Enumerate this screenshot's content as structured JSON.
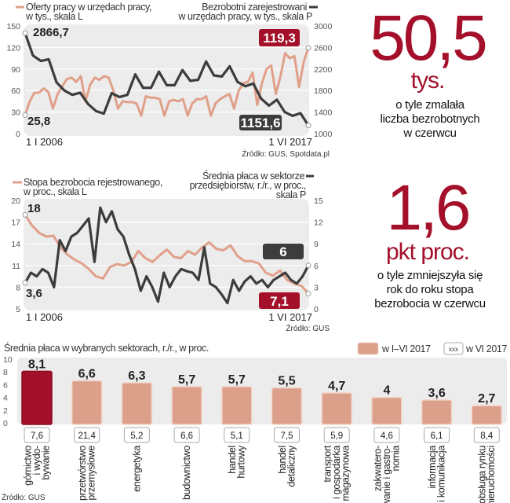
{
  "colors": {
    "salmon": "#e0a08a",
    "dark": "#3c3c3c",
    "red": "#a4102a",
    "grid_bg": "#ececec"
  },
  "headline1": {
    "value": "50,5",
    "unit": "tys.",
    "lines": [
      "o tyle zmalała",
      "liczba bezrobotnych",
      "w czerwcu"
    ]
  },
  "headline2": {
    "value": "1,6",
    "unit": "pkt proc.",
    "lines": [
      "o tyle zmniejszyła się",
      "rok do roku stopa",
      "bezrobocia w czerwcu"
    ]
  },
  "chart_data": [
    {
      "type": "line",
      "legend_left": [
        "Oferty pracy w urzędach pracy,",
        "w tys., skala L"
      ],
      "legend_right": [
        "Bezrobotni zarejestrowani",
        "w urzędach pracy, w tys., skala P"
      ],
      "x_start": "1 I 2006",
      "x_end": "1 VI 2017",
      "ylim_left": [
        0,
        150
      ],
      "yticks_left": [
        "0",
        "30",
        "60",
        "90",
        "120",
        "150"
      ],
      "ylim_right": [
        1000,
        3000
      ],
      "yticks_right": [
        "1000",
        "1400",
        "1800",
        "2200",
        "2600",
        "3000"
      ],
      "annotations": {
        "left_start": "25,8",
        "left_end": "119,3",
        "right_start": "2866,7",
        "right_end": "1151,6"
      },
      "source": "Źródło: GUS, Spotdata.pl",
      "series": [
        {
          "name": "Oferty pracy",
          "axis": "left",
          "values": [
            25.8,
            45,
            57,
            57,
            63,
            58,
            35,
            55,
            66,
            76,
            78,
            72,
            80,
            45,
            68,
            78,
            75,
            80,
            78,
            60,
            35,
            45,
            44,
            44,
            42,
            25,
            52,
            50,
            50,
            48,
            25,
            45,
            47,
            45,
            48,
            25,
            42,
            48,
            48,
            52,
            25,
            42,
            48,
            52,
            55,
            35,
            60,
            70,
            72,
            85,
            40,
            70,
            90,
            95,
            55,
            80,
            112,
            105,
            108,
            65,
            100,
            119.3
          ]
        },
        {
          "name": "Bezrobotni",
          "axis": "right",
          "values": [
            2866.7,
            2450,
            2350,
            2380,
            1950,
            1800,
            1720,
            1760,
            1550,
            1420,
            1370,
            1750,
            1680,
            1720,
            2100,
            1850,
            1850,
            2150,
            1900,
            1900,
            2180,
            1980,
            2000,
            2340,
            2080,
            2060,
            2250,
            1960,
            1880,
            1930,
            1650,
            1520,
            1630,
            1400,
            1330,
            1380,
            1151.6
          ]
        }
      ]
    },
    {
      "type": "line",
      "legend_left": [
        "Stopa bezrobocia rejestrowanego,",
        "w proc., skala L"
      ],
      "legend_right": [
        "Średnia płaca w sektorze",
        "przedsiębiorstw, r./r., w proc.,",
        "skala P"
      ],
      "x_start": "1 I 2006",
      "x_end": "1 VI 2017",
      "ylim_left": [
        5,
        20
      ],
      "yticks_left": [
        "5",
        "8",
        "11",
        "14",
        "17",
        "20"
      ],
      "ylim_right": [
        0,
        15
      ],
      "yticks_right": [
        "0",
        "3",
        "6",
        "9",
        "12",
        "15"
      ],
      "annotations": {
        "left_start": "18",
        "left_end": "7,1",
        "right_start": "3,6",
        "right_end": "6"
      },
      "source": "Źródło: GUS",
      "series": [
        {
          "name": "Stopa bezrobocia",
          "axis": "left",
          "values": [
            18,
            16.5,
            15.5,
            15,
            15.1,
            13.5,
            12.5,
            11.8,
            11.3,
            10.5,
            9.5,
            9.2,
            10.8,
            11.2,
            11,
            11.5,
            13,
            12,
            11.5,
            12.4,
            13.2,
            12.2,
            12,
            13,
            12.5,
            13.5,
            14.2,
            13.3,
            13.1,
            13.8,
            12.3,
            11.6,
            11.6,
            11.3,
            10,
            9.6,
            10.3,
            9,
            8.5,
            8.2,
            7.1
          ]
        },
        {
          "name": "Średnia płaca",
          "axis": "right",
          "values": [
            3.6,
            5,
            4.5,
            5.5,
            5,
            3,
            9.5,
            8,
            10,
            10.5,
            11.5,
            12.5,
            6.5,
            14,
            12,
            13.5,
            11,
            10,
            7.5,
            5.5,
            2.5,
            4.5,
            3,
            1,
            5,
            3,
            4.5,
            5.5,
            5.2,
            5,
            4,
            8.5,
            3.5,
            3,
            2,
            0.8,
            4,
            2.5,
            3.8,
            4.5,
            3.5,
            4,
            3,
            4,
            4.5,
            5,
            4,
            3.5,
            4.5,
            6
          ]
        }
      ]
    },
    {
      "type": "bar",
      "title": "Średnia płaca w wybranych sektorach, r./r., w proc.",
      "legend": {
        "bar": "w I–VI 2017",
        "box_sample": "xxx",
        "box": "w VI 2017"
      },
      "ylim": [
        0,
        10
      ],
      "yticks": [
        "0",
        "2",
        "4",
        "6",
        "8",
        "10"
      ],
      "categories": [
        [
          "górnictwo",
          "i wydo-",
          "bywanie"
        ],
        [
          "przetwórstwo",
          "przemysłowe"
        ],
        [
          "energetyka"
        ],
        [
          "budownictwo"
        ],
        [
          "handel",
          "hurtowy"
        ],
        [
          "handel",
          "detaliczny"
        ],
        [
          "transport",
          "i gospodarka",
          "magazynowa"
        ],
        [
          "zakwatero-",
          "wanie i gastro-",
          "nomia"
        ],
        [
          "informacja",
          "i komunikacja"
        ],
        [
          "obsługa rynku",
          "nieruchomości"
        ]
      ],
      "values": [
        8.1,
        6.6,
        6.3,
        5.7,
        5.7,
        5.5,
        4.7,
        4,
        3.6,
        2.7
      ],
      "value_labels": [
        "8,1",
        "6,6",
        "6,3",
        "5,7",
        "5,7",
        "5,5",
        "4,7",
        "4",
        "3,6",
        "2,7"
      ],
      "june_labels": [
        "7,6",
        "21,4",
        "5,2",
        "6,6",
        "5,1",
        "7,5",
        "5,9",
        "4,6",
        "6,1",
        "8,4"
      ],
      "source": "Źródło: GUS"
    }
  ]
}
